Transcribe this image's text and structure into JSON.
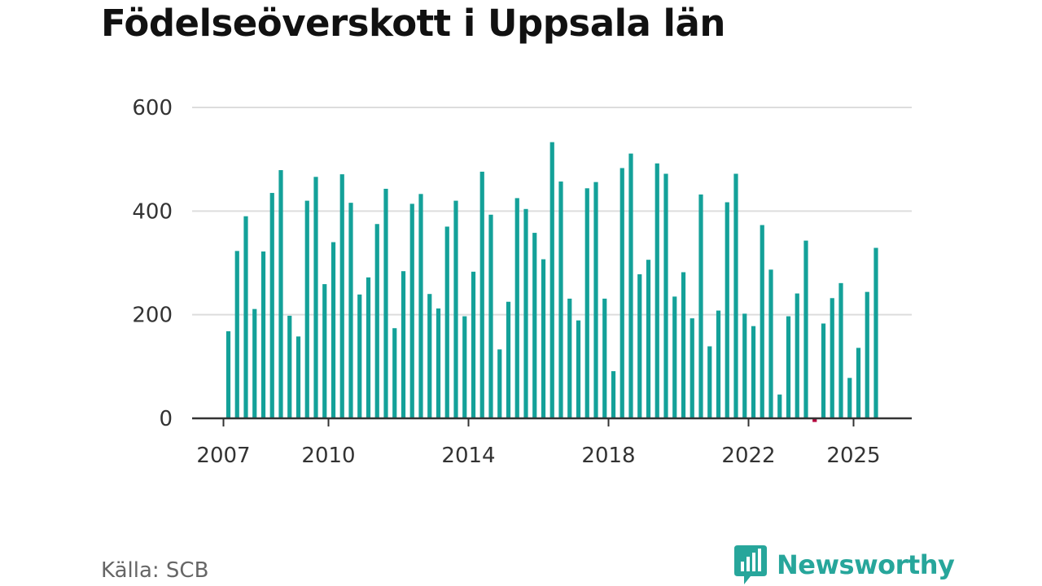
{
  "title": "Födelseöverskott i Uppsala län",
  "source": "Källa: SCB",
  "brand": {
    "name": "Newsworthy",
    "icon": "newsworthy-chart-logo-icon",
    "color": "#27a69b"
  },
  "colors": {
    "positive": "#14a199",
    "negative": "#b3003b",
    "grid": "#dddddd",
    "axis": "#333333"
  },
  "chart_data": {
    "type": "bar",
    "frequency": "quarterly",
    "title": "Födelseöverskott i Uppsala län",
    "xlabel": "",
    "ylabel": "",
    "ylim": [
      0,
      600
    ],
    "yticks": [
      0,
      200,
      400,
      600
    ],
    "xticks": [
      "2007",
      "2010",
      "2014",
      "2018",
      "2022",
      "2025"
    ],
    "grid": true,
    "categories": [
      "2007 Q1",
      "2007 Q2",
      "2007 Q3",
      "2007 Q4",
      "2008 Q1",
      "2008 Q2",
      "2008 Q3",
      "2008 Q4",
      "2009 Q1",
      "2009 Q2",
      "2009 Q3",
      "2009 Q4",
      "2010 Q1",
      "2010 Q2",
      "2010 Q3",
      "2010 Q4",
      "2011 Q1",
      "2011 Q2",
      "2011 Q3",
      "2011 Q4",
      "2012 Q1",
      "2012 Q2",
      "2012 Q3",
      "2012 Q4",
      "2013 Q1",
      "2013 Q2",
      "2013 Q3",
      "2013 Q4",
      "2014 Q1",
      "2014 Q2",
      "2014 Q3",
      "2014 Q4",
      "2015 Q1",
      "2015 Q2",
      "2015 Q3",
      "2015 Q4",
      "2016 Q1",
      "2016 Q2",
      "2016 Q3",
      "2016 Q4",
      "2017 Q1",
      "2017 Q2",
      "2017 Q3",
      "2017 Q4",
      "2018 Q1",
      "2018 Q2",
      "2018 Q3",
      "2018 Q4",
      "2019 Q1",
      "2019 Q2",
      "2019 Q3",
      "2019 Q4",
      "2020 Q1",
      "2020 Q2",
      "2020 Q3",
      "2020 Q4",
      "2021 Q1",
      "2021 Q2",
      "2021 Q3",
      "2021 Q4",
      "2022 Q1",
      "2022 Q2",
      "2022 Q3",
      "2022 Q4",
      "2023 Q1",
      "2023 Q2",
      "2023 Q3",
      "2023 Q4",
      "2024 Q1",
      "2024 Q2",
      "2024 Q3",
      "2024 Q4",
      "2025 Q1",
      "2025 Q2",
      "2025 Q3"
    ],
    "values": [
      168,
      323,
      390,
      211,
      322,
      435,
      479,
      198,
      158,
      420,
      466,
      259,
      340,
      471,
      416,
      239,
      272,
      375,
      443,
      174,
      284,
      414,
      433,
      240,
      212,
      370,
      420,
      197,
      283,
      476,
      393,
      133,
      225,
      425,
      404,
      358,
      307,
      533,
      457,
      231,
      189,
      444,
      456,
      231,
      91,
      483,
      511,
      278,
      306,
      492,
      472,
      235,
      282,
      193,
      432,
      139,
      208,
      417,
      472,
      202,
      178,
      373,
      287,
      46,
      197,
      241,
      343,
      -7,
      183,
      232,
      261,
      78,
      136,
      244,
      329
    ]
  }
}
